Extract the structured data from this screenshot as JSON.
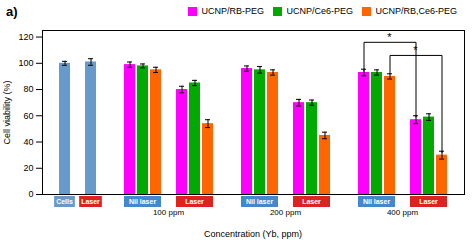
{
  "chart_data": {
    "type": "bar",
    "title": "a)",
    "xlabel": "Concentration (Yb, ppm)",
    "ylabel": "Cell viability (%)",
    "ylim": [
      0,
      125
    ],
    "yticks": [
      0,
      20,
      40,
      60,
      80,
      100,
      120
    ],
    "grid": false,
    "legend": "upper right",
    "categories": [
      "Cells",
      "Laser",
      "Nil laser",
      "Laser",
      "Nil laser",
      "Laser",
      "Nil laser",
      "Laser"
    ],
    "sublabels": [
      null,
      null,
      "100 ppm",
      "100 ppm",
      "200 ppm",
      "200 ppm",
      "400 ppm",
      "400 ppm"
    ],
    "label_colors": [
      "#6699CC",
      "#DD2222",
      "#4488CC",
      "#DD2222",
      "#4488CC",
      "#DD2222",
      "#4488CC",
      "#DD2222"
    ],
    "series": [
      {
        "name": "UCNP/RB-PEG",
        "color": "#FF00FF",
        "values": [
          null,
          null,
          99,
          80,
          96,
          70,
          93,
          57
        ],
        "errors": [
          null,
          null,
          2.0,
          2.5,
          2.0,
          2.5,
          2.5,
          3.0
        ]
      },
      {
        "name": "UCNP/Ce6-PEG",
        "color": "#00AA00",
        "values": [
          null,
          null,
          98,
          85,
          95,
          70,
          93,
          59
        ],
        "errors": [
          null,
          null,
          1.5,
          2.0,
          2.5,
          2.0,
          2.0,
          2.5
        ]
      },
      {
        "name": "UCNP/RB,Ce6-PEG",
        "color": "#FF6600",
        "values": [
          null,
          null,
          95,
          54,
          93,
          45,
          90,
          30
        ],
        "errors": [
          null,
          null,
          2.0,
          3.0,
          2.0,
          2.5,
          2.0,
          3.0
        ]
      },
      {
        "color": "#6699CC",
        "values": [
          100,
          101,
          null,
          null,
          null,
          null,
          null,
          null
        ],
        "errors": [
          1.5,
          2.5,
          null,
          null,
          null,
          null,
          null,
          null
        ]
      }
    ],
    "annotations": [
      {
        "text": "*",
        "series": "UCNP/RB,Ce6-PEG",
        "categories": [
          6,
          7
        ],
        "y": 106,
        "ends": [
          92,
          32
        ]
      },
      {
        "text": "*",
        "series": "UCNP/RB-PEG",
        "categories": [
          6,
          7
        ],
        "y": 116,
        "ends": [
          94,
          59
        ]
      }
    ]
  }
}
